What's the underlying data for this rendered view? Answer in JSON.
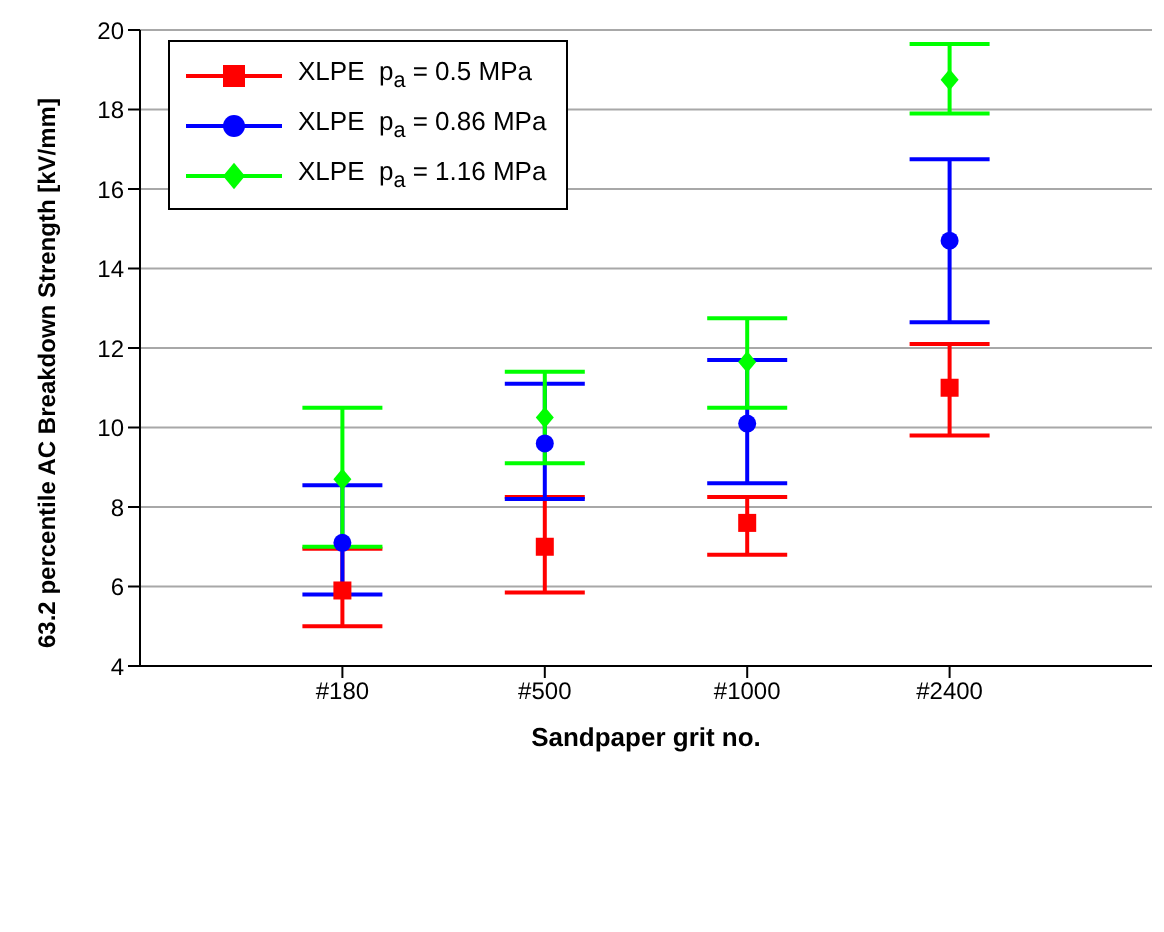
{
  "chart_data": {
    "type": "scatter",
    "xlabel": "Sandpaper grit no.",
    "ylabel": "63.2 percentile AC Breakdown Strength [kV/mm]",
    "categories": [
      "#180",
      "#500",
      "#1000",
      "#2400"
    ],
    "series": [
      {
        "name": "XLPE  p$_{a}$ = 0.5 MPa",
        "color": "#ff0000",
        "marker": "square",
        "values": [
          5.9,
          7.0,
          7.6,
          11.0
        ],
        "errors": [
          [
            5.0,
            6.95
          ],
          [
            5.85,
            8.25
          ],
          [
            6.8,
            8.25
          ],
          [
            9.8,
            12.1
          ]
        ]
      },
      {
        "name": "XLPE  p$_{a}$ = 0.86 MPa",
        "color": "#0000ff",
        "marker": "circle",
        "values": [
          7.1,
          9.6,
          10.1,
          14.7
        ],
        "errors": [
          [
            5.8,
            8.55
          ],
          [
            8.2,
            11.1
          ],
          [
            8.6,
            11.7
          ],
          [
            12.65,
            16.75
          ]
        ]
      },
      {
        "name": "XLPE  p$_{a}$ = 1.16 MPa",
        "color": "#00ff00",
        "marker": "diamond",
        "values": [
          8.7,
          10.25,
          11.65,
          18.75
        ],
        "errors": [
          [
            7.0,
            10.5
          ],
          [
            9.1,
            11.4
          ],
          [
            10.5,
            12.75
          ],
          [
            17.9,
            19.65
          ]
        ]
      }
    ],
    "ylim": [
      4,
      20
    ],
    "yticks": [
      4,
      6,
      8,
      10,
      12,
      14,
      16,
      18,
      20
    ],
    "grid": "y",
    "legend": "top left"
  }
}
